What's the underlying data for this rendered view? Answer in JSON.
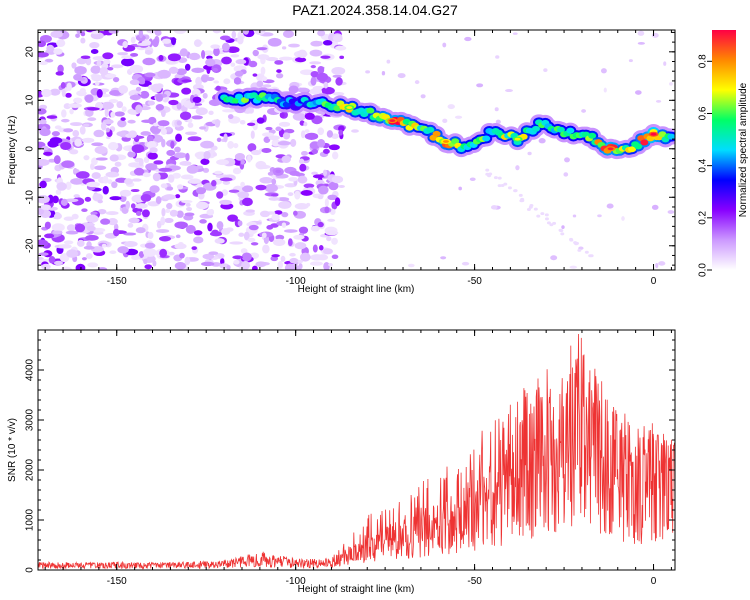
{
  "title": "PAZ1.2024.358.14.04.G27",
  "chart_data": [
    {
      "type": "heatmap",
      "xlabel": "Height of straight line (km)",
      "ylabel": "Frequency (Hz)",
      "xlim": [
        -172,
        6
      ],
      "ylim": [
        -25,
        24.5
      ],
      "xticks": [
        -150,
        -100,
        -50,
        0
      ],
      "yticks": [
        -20,
        -10,
        0,
        10,
        20
      ],
      "xtick_labels": [
        "-150",
        "-100",
        "-50",
        "0"
      ],
      "ytick_labels": [
        "-20",
        "-10",
        "0",
        "10",
        "20"
      ],
      "colorbar": {
        "label": "Normalized spectral amplitude",
        "range": [
          0,
          0.92
        ],
        "ticks": [
          0,
          0.2,
          0.4,
          0.6,
          0.8
        ],
        "tick_labels": [
          "0.0",
          "0.2",
          "0.4",
          "0.6",
          "0.8"
        ],
        "colors": [
          "#ffffff",
          "#cc99ff",
          "#8800ff",
          "#0000ff",
          "#00ddff",
          "#00ff66",
          "#ffff00",
          "#ff8800",
          "#ff0044"
        ]
      },
      "ridge": [
        {
          "x": -120,
          "y": 10,
          "v": 0.45
        },
        {
          "x": -110,
          "y": 10.5,
          "v": 0.5
        },
        {
          "x": -100,
          "y": 9.5,
          "v": 0.3
        },
        {
          "x": -90,
          "y": 9,
          "v": 0.5
        },
        {
          "x": -85,
          "y": 8.5,
          "v": 0.6
        },
        {
          "x": -80,
          "y": 7.5,
          "v": 0.5
        },
        {
          "x": -73,
          "y": 5.8,
          "v": 0.8
        },
        {
          "x": -65,
          "y": 4.5,
          "v": 0.5
        },
        {
          "x": -58,
          "y": 1.5,
          "v": 0.7
        },
        {
          "x": -52,
          "y": 0,
          "v": 0.5
        },
        {
          "x": -45,
          "y": 3.5,
          "v": 0.5
        },
        {
          "x": -38,
          "y": 2,
          "v": 0.6
        },
        {
          "x": -32,
          "y": 5,
          "v": 0.5
        },
        {
          "x": -25,
          "y": 3.5,
          "v": 0.45
        },
        {
          "x": -18,
          "y": 2.5,
          "v": 0.5
        },
        {
          "x": -12,
          "y": 0,
          "v": 0.8
        },
        {
          "x": -6,
          "y": 0.5,
          "v": 0.55
        },
        {
          "x": 0,
          "y": 3,
          "v": 0.85
        },
        {
          "x": 5,
          "y": 2.5,
          "v": 0.5
        }
      ]
    },
    {
      "type": "line",
      "xlabel": "Height of straight line (km)",
      "ylabel": "SNR (10 * v/v)",
      "xlim": [
        -172,
        6
      ],
      "ylim": [
        0,
        4800
      ],
      "xticks": [
        -150,
        -100,
        -50,
        0
      ],
      "yticks": [
        0,
        1000,
        2000,
        3000,
        4000
      ],
      "xtick_labels": [
        "-150",
        "-100",
        "-50",
        "0"
      ],
      "ytick_labels": [
        "0",
        "1000",
        "2000",
        "3000",
        "4000"
      ],
      "series": [
        {
          "color": "#ee3333",
          "x": [
            -172,
            -160,
            -150,
            -140,
            -130,
            -120,
            -110,
            -100,
            -95,
            -90,
            -85,
            -80,
            -75,
            -70,
            -65,
            -60,
            -55,
            -50,
            -45,
            -40,
            -35,
            -30,
            -25,
            -20,
            -15,
            -10,
            -5,
            0,
            3,
            6
          ],
          "y": [
            120,
            110,
            120,
            110,
            120,
            140,
            220,
            160,
            150,
            180,
            350,
            550,
            700,
            800,
            1000,
            1100,
            1200,
            1400,
            1700,
            2100,
            2300,
            2700,
            2900,
            3200,
            2600,
            2300,
            2000,
            2100,
            2000,
            1900
          ],
          "peak": [
            130,
            140,
            160,
            150,
            170,
            200,
            380,
            230,
            220,
            300,
            700,
            1100,
            1300,
            1500,
            1900,
            2000,
            2200,
            2600,
            3100,
            3500,
            3800,
            4100,
            4600,
            4800,
            3800,
            3600,
            2900,
            3200,
            2800,
            2500
          ]
        }
      ]
    }
  ]
}
